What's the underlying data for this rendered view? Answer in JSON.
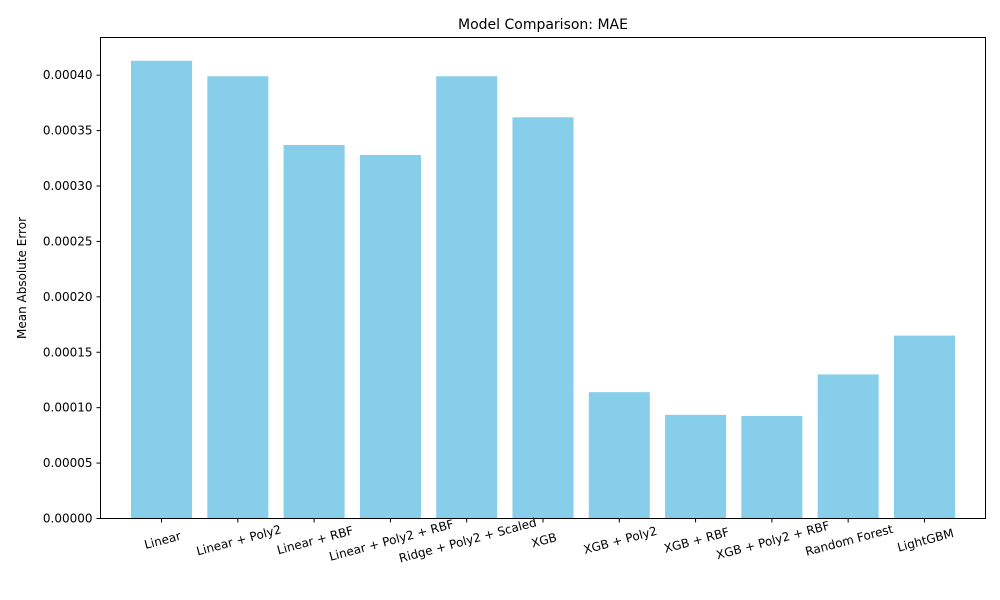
{
  "chart_data": {
    "type": "bar",
    "title": "Model Comparison: MAE",
    "xlabel": "",
    "ylabel": "Mean Absolute Error",
    "categories": [
      "Linear",
      "Linear + Poly2",
      "Linear + RBF",
      "Linear + Poly2 + RBF",
      "Ridge + Poly2 + Scaled",
      "XGB",
      "XGB + Poly2",
      "XGB + RBF",
      "XGB + Poly2 + RBF",
      "Random Forest",
      "LightGBM"
    ],
    "values": [
      0.000413,
      0.000399,
      0.000337,
      0.000328,
      0.000399,
      0.000362,
      0.000114,
      9.35e-05,
      9.25e-05,
      0.00013,
      0.000165
    ],
    "ylim": [
      0,
      0.000434
    ],
    "yticks": [
      0,
      5e-05,
      0.0001,
      0.00015,
      0.0002,
      0.00025,
      0.0003,
      0.00035,
      0.0004
    ],
    "ytick_labels": [
      "0.00000",
      "0.00005",
      "0.00010",
      "0.00015",
      "0.00020",
      "0.00025",
      "0.00030",
      "0.00035",
      "0.00040"
    ],
    "bar_color": "#87ceeb",
    "grid": false,
    "legend": "none",
    "xtick_rotation_deg": 15
  }
}
